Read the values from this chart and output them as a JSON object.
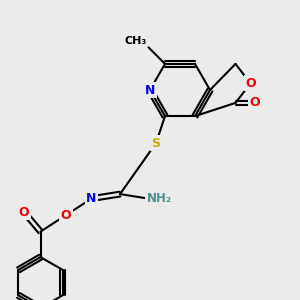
{
  "bg_color": "#ebebeb",
  "atom_colors": {
    "C": "#000000",
    "N": "#0000ee",
    "O": "#ee0000",
    "S": "#ccaa00",
    "H": "#4a9090"
  },
  "bond_color": "#000000",
  "bond_width": 1.5
}
